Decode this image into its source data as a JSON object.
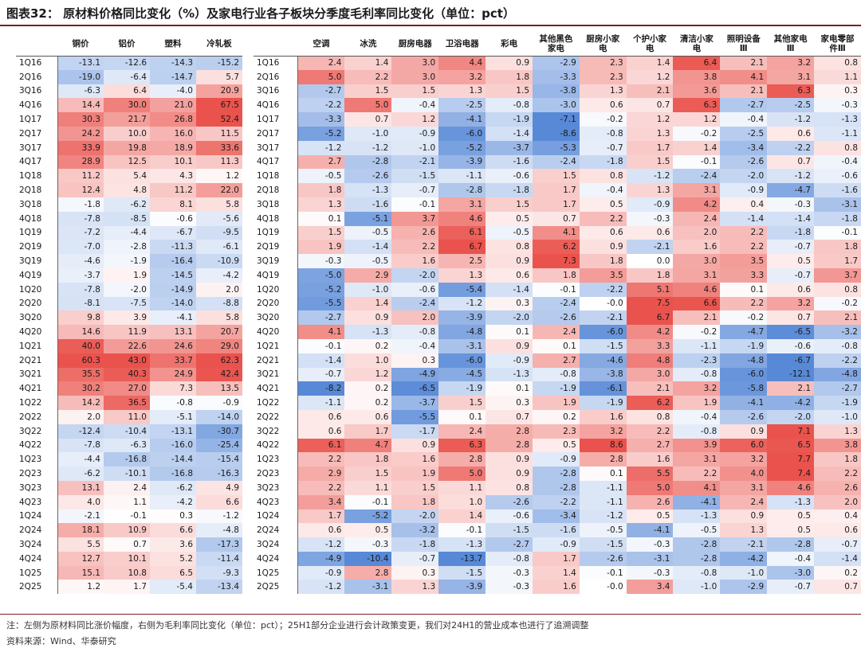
{
  "title": "图表32：  原材料价格同比变化（%）及家电行业各子板块分季度毛利率同比变化（单位：pct）",
  "note": "注：左侧为原材料同比涨价幅度，右侧为毛利率同比变化（单位：pct）；25H1部分企业进行会计政策变更，我们对24H1的营业成本也进行了追溯调整",
  "source": "资料来源：Wind、华泰研究",
  "colors": {
    "positive": "#e8443d",
    "negative": "#4a7fd4",
    "neutral": "#ffffff"
  },
  "chart_data": [
    {
      "type": "heatmap",
      "title": "原材料价格同比变化（%）",
      "rows": [
        "1Q16",
        "2Q16",
        "3Q16",
        "4Q16",
        "1Q17",
        "2Q17",
        "3Q17",
        "4Q17",
        "1Q18",
        "2Q18",
        "3Q18",
        "4Q18",
        "1Q19",
        "2Q19",
        "3Q19",
        "4Q19",
        "1Q20",
        "2Q20",
        "3Q20",
        "4Q20",
        "1Q21",
        "2Q21",
        "3Q21",
        "4Q21",
        "1Q22",
        "2Q22",
        "3Q22",
        "4Q22",
        "1Q23",
        "2Q23",
        "3Q23",
        "4Q23",
        "1Q24",
        "2Q24",
        "3Q24",
        "4Q24",
        "1Q25",
        "2Q25"
      ],
      "columns": [
        "铜价",
        "铝价",
        "塑料",
        "冷轧板"
      ],
      "values": [
        [
          -13.1,
          -12.6,
          -14.3,
          -15.2
        ],
        [
          -19.0,
          -6.4,
          -14.7,
          5.7
        ],
        [
          -6.3,
          6.4,
          -4.0,
          20.9
        ],
        [
          14.4,
          30.0,
          21.0,
          67.5
        ],
        [
          30.3,
          21.7,
          26.8,
          52.4
        ],
        [
          24.2,
          10.0,
          16.0,
          11.5
        ],
        [
          33.9,
          19.8,
          18.9,
          33.6
        ],
        [
          28.9,
          12.5,
          10.1,
          11.3
        ],
        [
          11.2,
          5.4,
          4.3,
          1.2
        ],
        [
          12.4,
          4.8,
          11.2,
          22.0
        ],
        [
          -1.8,
          -6.2,
          8.1,
          5.8
        ],
        [
          -7.8,
          -8.5,
          -0.6,
          -5.6
        ],
        [
          -7.2,
          -4.4,
          -6.7,
          -9.5
        ],
        [
          -7.0,
          -2.8,
          -11.3,
          -6.1
        ],
        [
          -4.6,
          -1.9,
          -16.4,
          -10.9
        ],
        [
          -3.7,
          1.9,
          -14.5,
          -4.2
        ],
        [
          -7.8,
          -2.0,
          -14.9,
          2.0
        ],
        [
          -8.1,
          -7.5,
          -14.0,
          -8.8
        ],
        [
          9.8,
          3.9,
          -4.1,
          5.8
        ],
        [
          14.6,
          11.9,
          13.1,
          20.7
        ],
        [
          40.0,
          22.6,
          24.6,
          29.0
        ],
        [
          60.3,
          43.0,
          33.7,
          62.3
        ],
        [
          35.5,
          40.3,
          24.9,
          42.4
        ],
        [
          30.2,
          27.0,
          7.3,
          13.5
        ],
        [
          14.2,
          36.5,
          -0.8,
          -0.9
        ],
        [
          2.0,
          11.0,
          -5.1,
          -14.0
        ],
        [
          -12.4,
          -10.4,
          -13.1,
          -30.7
        ],
        [
          -7.8,
          -6.3,
          -16.0,
          -25.4
        ],
        [
          -4.4,
          -16.8,
          -14.4,
          -15.4
        ],
        [
          -6.2,
          -10.1,
          -16.8,
          -16.3
        ],
        [
          13.1,
          2.4,
          -6.2,
          4.9
        ],
        [
          4.0,
          1.1,
          -4.2,
          6.6
        ],
        [
          -2.1,
          -0.1,
          0.3,
          -1.2
        ],
        [
          18.1,
          10.9,
          6.6,
          -4.8
        ],
        [
          5.5,
          0.7,
          3.6,
          -17.3
        ],
        [
          12.7,
          10.1,
          5.2,
          -11.4
        ],
        [
          15.1,
          10.8,
          6.5,
          -9.3
        ],
        [
          1.2,
          1.7,
          -5.4,
          -13.4
        ]
      ]
    },
    {
      "type": "heatmap",
      "title": "家电行业各子板块分季度毛利率同比变化（pct）",
      "rows": [
        "1Q16",
        "2Q16",
        "3Q16",
        "4Q16",
        "1Q17",
        "2Q17",
        "3Q17",
        "4Q17",
        "1Q18",
        "2Q18",
        "3Q18",
        "4Q18",
        "1Q19",
        "2Q19",
        "3Q19",
        "4Q19",
        "1Q20",
        "2Q20",
        "3Q20",
        "4Q20",
        "1Q21",
        "2Q21",
        "3Q21",
        "4Q21",
        "1Q22",
        "2Q22",
        "3Q22",
        "4Q22",
        "1Q23",
        "2Q23",
        "3Q23",
        "4Q23",
        "1Q24",
        "2Q24",
        "3Q24",
        "4Q24",
        "1Q25",
        "2Q25"
      ],
      "columns": [
        "空调",
        "冰洗",
        "厨房电器",
        "卫浴电器",
        "彩电",
        "其他黑色家电",
        "厨房小家电",
        "个护小家电",
        "清洁小家电",
        "照明设备Ⅲ",
        "其他家电Ⅲ",
        "家电零部件Ⅲ"
      ],
      "values": [
        [
          2.4,
          1.4,
          3.0,
          4.4,
          0.9,
          -2.9,
          2.3,
          1.4,
          6.4,
          2.1,
          3.2,
          0.8
        ],
        [
          5.0,
          2.2,
          3.0,
          3.2,
          1.8,
          -3.3,
          2.3,
          1.2,
          3.8,
          4.1,
          3.1,
          1.1
        ],
        [
          -2.7,
          1.5,
          1.5,
          1.3,
          1.5,
          -3.8,
          1.3,
          2.1,
          3.6,
          2.1,
          6.3,
          0.3
        ],
        [
          -2.2,
          5.0,
          -0.4,
          -2.5,
          -0.8,
          -3.0,
          0.6,
          0.7,
          6.3,
          -2.7,
          -2.5,
          -0.3
        ],
        [
          -3.3,
          0.7,
          1.2,
          -4.1,
          -1.9,
          -7.1,
          -0.2,
          1.2,
          1.2,
          -0.4,
          -1.2,
          -1.3
        ],
        [
          -5.2,
          -1.0,
          -0.9,
          -6.0,
          -1.4,
          -8.6,
          -0.8,
          1.3,
          -0.2,
          -2.5,
          0.6,
          -1.1
        ],
        [
          -1.2,
          -1.2,
          -1.0,
          -5.2,
          -3.7,
          -5.3,
          -0.7,
          1.7,
          1.4,
          -3.4,
          -2.2,
          0.8
        ],
        [
          2.7,
          -2.8,
          -2.1,
          -3.9,
          -1.6,
          -2.4,
          -1.8,
          1.5,
          -0.1,
          -2.6,
          0.7,
          -0.4
        ],
        [
          -0.5,
          -2.6,
          -1.5,
          -1.1,
          -0.6,
          1.5,
          0.8,
          -1.2,
          -2.4,
          -2.0,
          -1.2,
          -0.6
        ],
        [
          1.8,
          -1.3,
          -0.7,
          -2.8,
          -1.8,
          1.7,
          -0.4,
          1.3,
          3.1,
          -0.9,
          -4.7,
          -1.6
        ],
        [
          1.3,
          -1.6,
          -0.1,
          3.1,
          1.5,
          1.7,
          0.5,
          -0.9,
          4.2,
          0.4,
          -0.3,
          -3.1
        ],
        [
          0.1,
          -5.1,
          3.7,
          4.6,
          0.5,
          0.7,
          2.2,
          -0.3,
          2.4,
          -1.4,
          -1.4,
          -1.8
        ],
        [
          1.5,
          -0.5,
          2.6,
          6.1,
          -0.5,
          4.1,
          0.6,
          0.6,
          2.0,
          2.2,
          -1.8,
          -0.1
        ],
        [
          1.9,
          -1.4,
          2.2,
          6.7,
          0.8,
          6.2,
          0.9,
          -2.1,
          1.6,
          2.2,
          -0.7,
          1.8
        ],
        [
          -0.3,
          -0.5,
          1.6,
          2.5,
          0.9,
          7.3,
          1.8,
          0.0,
          3.0,
          3.5,
          0.5,
          1.7
        ],
        [
          -5.0,
          2.9,
          -2.0,
          1.3,
          0.6,
          1.8,
          3.5,
          1.8,
          3.1,
          3.3,
          -0.7,
          3.7
        ],
        [
          -5.2,
          -1.0,
          -0.6,
          -5.4,
          -1.4,
          -0.1,
          -2.2,
          5.1,
          4.6,
          0.1,
          0.6,
          0.8
        ],
        [
          -5.5,
          1.4,
          -2.4,
          -1.2,
          0.3,
          -2.4,
          -0.0,
          7.5,
          6.6,
          2.2,
          3.2,
          -0.2
        ],
        [
          -2.7,
          0.9,
          2.0,
          -3.9,
          -2.0,
          -2.6,
          -2.1,
          6.7,
          2.1,
          -0.2,
          0.7,
          2.1
        ],
        [
          4.1,
          -1.3,
          -0.8,
          -4.8,
          0.1,
          2.4,
          -6.0,
          4.2,
          -0.2,
          -4.7,
          -6.5,
          -3.2
        ],
        [
          -0.1,
          0.2,
          -0.4,
          -3.1,
          0.9,
          0.1,
          -1.5,
          3.3,
          -1.1,
          -1.9,
          -0.6,
          -0.8
        ],
        [
          -1.4,
          1.0,
          0.3,
          -6.0,
          -0.9,
          2.7,
          -4.6,
          4.8,
          -2.3,
          -4.8,
          -6.7,
          -2.2
        ],
        [
          -0.7,
          1.2,
          -4.9,
          -4.5,
          -1.3,
          -0.8,
          -3.8,
          3.0,
          -0.8,
          -6.0,
          -12.1,
          -4.8
        ],
        [
          -8.2,
          0.2,
          -6.5,
          -1.9,
          0.1,
          -1.9,
          -6.1,
          2.1,
          3.2,
          -5.8,
          2.1,
          -2.7
        ],
        [
          -1.1,
          0.2,
          -3.7,
          1.5,
          0.3,
          1.9,
          -1.9,
          6.2,
          1.9,
          -4.1,
          -4.2,
          -1.9
        ],
        [
          0.6,
          0.6,
          -5.5,
          0.1,
          0.7,
          0.2,
          1.6,
          0.8,
          -0.4,
          -2.6,
          -2.0,
          -1.0
        ],
        [
          0.6,
          1.7,
          -1.7,
          2.4,
          2.8,
          2.3,
          3.2,
          2.2,
          -0.8,
          0.9,
          7.1,
          1.3
        ],
        [
          6.1,
          4.7,
          0.9,
          6.3,
          2.8,
          0.5,
          8.6,
          2.7,
          3.9,
          6.0,
          6.5,
          3.8
        ],
        [
          2.2,
          1.8,
          1.6,
          2.8,
          0.9,
          -0.9,
          2.8,
          1.6,
          3.1,
          3.2,
          7.7,
          1.8
        ],
        [
          2.9,
          1.5,
          1.9,
          5.0,
          0.9,
          -2.8,
          0.1,
          5.5,
          2.2,
          4.0,
          7.4,
          2.2
        ],
        [
          2.2,
          1.1,
          1.5,
          1.1,
          0.8,
          -2.8,
          -1.1,
          5.0,
          4.1,
          3.1,
          4.6,
          2.6
        ],
        [
          3.4,
          -0.1,
          1.8,
          1.0,
          -2.6,
          -2.2,
          -1.1,
          2.6,
          -4.1,
          2.4,
          -1.3,
          2.0
        ],
        [
          1.7,
          -5.2,
          -2.0,
          1.4,
          -0.6,
          -3.4,
          -1.2,
          0.5,
          -1.3,
          0.9,
          0.5,
          0.4
        ],
        [
          0.6,
          0.5,
          -3.2,
          -0.1,
          -1.5,
          -1.6,
          -0.5,
          -4.1,
          -0.5,
          1.3,
          0.5,
          0.6
        ],
        [
          -1.2,
          -0.3,
          -1.8,
          -1.3,
          -2.7,
          -0.9,
          -1.5,
          -0.3,
          -2.8,
          -2.1,
          -2.8,
          -0.7
        ],
        [
          -4.9,
          -10.4,
          -0.7,
          -13.7,
          -0.8,
          1.7,
          -2.6,
          -3.1,
          -2.8,
          -4.2,
          -0.4,
          -1.4
        ],
        [
          -0.9,
          2.8,
          0.3,
          -1.5,
          -0.3,
          1.4,
          -0.1,
          -0.3,
          -0.8,
          -1.0,
          -3.0,
          0.2
        ],
        [
          -1.2,
          -3.1,
          1.3,
          -3.9,
          -0.3,
          1.6,
          -0.0,
          3.4,
          -1.0,
          -2.9,
          -0.7,
          0.7
        ]
      ]
    }
  ]
}
